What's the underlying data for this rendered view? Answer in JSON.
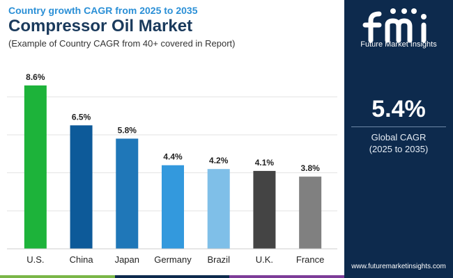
{
  "header": {
    "subtitle": "Country growth CAGR from 2025 to 2035",
    "title": "Compressor Oil Market",
    "note": "(Example of Country CAGR from 40+ covered in Report)"
  },
  "sidebar": {
    "logo_text": "Future Market Insights",
    "value": "5.4%",
    "label": "Global CAGR",
    "period": "(2025 to 2035)",
    "url": "www.futuremarketinsights.com"
  },
  "colors": {
    "panel": "#0d2a4d",
    "title": "#1a3a5c",
    "accent": "#2a8fd6",
    "bars": [
      "#1db33a",
      "#0d5a99",
      "#1f77b8",
      "#3399dd",
      "#7fbfe8",
      "#444444",
      "#808080"
    ],
    "bottom_bar": [
      "#7ab648",
      "#0d2a4d",
      "#7d3c98"
    ]
  },
  "chart_data": {
    "type": "bar",
    "categories": [
      "U.S.",
      "China",
      "Japan",
      "Germany",
      "Brazil",
      "U.K.",
      "France"
    ],
    "values": [
      8.6,
      6.5,
      5.8,
      4.4,
      4.2,
      4.1,
      3.8
    ],
    "value_labels": [
      "8.6%",
      "6.5%",
      "5.8%",
      "4.4%",
      "4.2%",
      "4.1%",
      "3.8%"
    ],
    "ylim": [
      0,
      9
    ],
    "grid": true,
    "legend": "none"
  }
}
